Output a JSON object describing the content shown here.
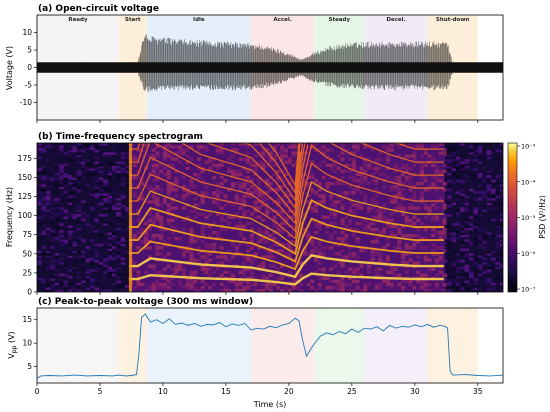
{
  "phases": [
    {
      "name": "Ready",
      "start": 0,
      "end": 6.5,
      "color": "#e6e6e6"
    },
    {
      "name": "Start",
      "start": 6.5,
      "end": 8.7,
      "color": "#f9d9a8"
    },
    {
      "name": "Idle",
      "start": 8.7,
      "end": 17,
      "color": "#c4dcf4"
    },
    {
      "name": "Accel.",
      "start": 17,
      "end": 22,
      "color": "#f4c7c7"
    },
    {
      "name": "Steady",
      "start": 22,
      "end": 26,
      "color": "#c8ecc8"
    },
    {
      "name": "Decel.",
      "start": 26,
      "end": 31,
      "color": "#e0d0ee"
    },
    {
      "name": "Shut-down",
      "start": 31,
      "end": 35,
      "color": "#f9d9a8"
    }
  ],
  "chart_data": [
    {
      "type": "line",
      "title": "(a) Open-circuit voltage",
      "xlabel": "",
      "ylabel": "Voltage (V)",
      "xlim": [
        0,
        37
      ],
      "ylim": [
        -15,
        15
      ],
      "yticks": [
        -10,
        -5,
        0,
        5,
        10
      ],
      "grid": false,
      "series_color": "#000000",
      "envelope": {
        "x": [
          0,
          6.5,
          8.0,
          8.5,
          9,
          12,
          15,
          17,
          18,
          19.5,
          21,
          21.8,
          23,
          24.5,
          26,
          28,
          30,
          31,
          32.6,
          33,
          37
        ],
        "upper": [
          1.5,
          1.5,
          1.6,
          10,
          9,
          8,
          7.5,
          7,
          6.5,
          5,
          2.5,
          4,
          6,
          7,
          7.5,
          7.5,
          7.5,
          7.5,
          7.5,
          1.5,
          1.5
        ],
        "lower": [
          -1.5,
          -1.5,
          -1.6,
          -7,
          -7,
          -6.5,
          -6.5,
          -6.5,
          -6,
          -4.5,
          -2.5,
          -4,
          -5.5,
          -6,
          -6.5,
          -6.5,
          -6.5,
          -6.5,
          -6.5,
          -1.5,
          -1.5
        ]
      }
    },
    {
      "type": "heatmap",
      "title": "(b) Time-frequency spectrogram",
      "xlabel": "",
      "ylabel": "Frequency (Hz)",
      "xlim": [
        0,
        37
      ],
      "ylim": [
        0,
        195
      ],
      "yticks": [
        0,
        25,
        50,
        75,
        100,
        125,
        150,
        175
      ],
      "colorbar": {
        "label": "PSD (V²/Hz)",
        "scale": "log",
        "range": [
          1e-07,
          0.001
        ],
        "tick_labels": [
          "10⁻³",
          "10⁻⁴",
          "10⁻⁵",
          "10⁻⁶",
          "10⁻⁷"
        ],
        "colormap": "inferno"
      },
      "active_interval": [
        7.3,
        32.4
      ],
      "harmonic_spacing_hz": {
        "x": [
          8,
          9,
          11,
          13,
          15,
          17,
          19,
          20.5,
          21.1,
          21.8,
          23,
          25,
          28,
          30,
          32.4
        ],
        "f0": [
          17,
          22,
          20,
          18,
          17,
          16,
          13,
          10,
          18,
          24,
          22,
          20,
          18,
          17,
          17
        ]
      }
    },
    {
      "type": "line",
      "title": "(c) Peak-to-peak voltage (300 ms window)",
      "xlabel": "Time (s)",
      "ylabel": "V_pp (V)",
      "xlim": [
        0,
        37
      ],
      "ylim": [
        1.5,
        17.5
      ],
      "xticks": [
        0,
        5,
        10,
        15,
        20,
        25,
        30,
        35
      ],
      "yticks": [
        5,
        10,
        15
      ],
      "grid": false,
      "series_color": "#1f77b4",
      "x": [
        0,
        0.3,
        1,
        2,
        3,
        4,
        5,
        6,
        6.5,
        7,
        7.5,
        7.9,
        8.1,
        8.3,
        8.6,
        9,
        9.5,
        10,
        10.5,
        11,
        11.5,
        12,
        12.5,
        13,
        13.5,
        14,
        14.5,
        15,
        15.5,
        16,
        16.5,
        17,
        17.5,
        18,
        18.5,
        19,
        19.5,
        20,
        20.5,
        20.8,
        21.1,
        21.4,
        21.7,
        22,
        22.5,
        23,
        23.5,
        24,
        24.5,
        25,
        25.5,
        26,
        26.5,
        27,
        27.5,
        28,
        28.5,
        29,
        29.5,
        30,
        30.5,
        31,
        31.5,
        32,
        32.4,
        32.6,
        32.8,
        33,
        34,
        35,
        36,
        37
      ],
      "y": [
        2.5,
        3.0,
        3.1,
        3.0,
        3.2,
        3.0,
        3.1,
        3.0,
        3.2,
        3.0,
        3.1,
        3.3,
        8.0,
        15.5,
        16.2,
        14.5,
        15.0,
        14.2,
        15.2,
        14.0,
        14.3,
        13.8,
        14.2,
        13.6,
        14.0,
        13.9,
        14.4,
        13.5,
        14.1,
        13.8,
        14.2,
        12.8,
        13.2,
        13.0,
        13.6,
        13.3,
        13.9,
        14.2,
        15.3,
        14.8,
        10.5,
        7.2,
        8.6,
        9.8,
        11.5,
        12.2,
        11.8,
        12.5,
        12.0,
        13.0,
        12.3,
        13.2,
        13.0,
        13.5,
        12.6,
        13.8,
        13.2,
        13.6,
        13.4,
        13.9,
        13.5,
        14.0,
        13.4,
        13.8,
        13.6,
        13.2,
        4.0,
        3.2,
        3.3,
        3.1,
        3.0,
        3.2
      ]
    }
  ]
}
